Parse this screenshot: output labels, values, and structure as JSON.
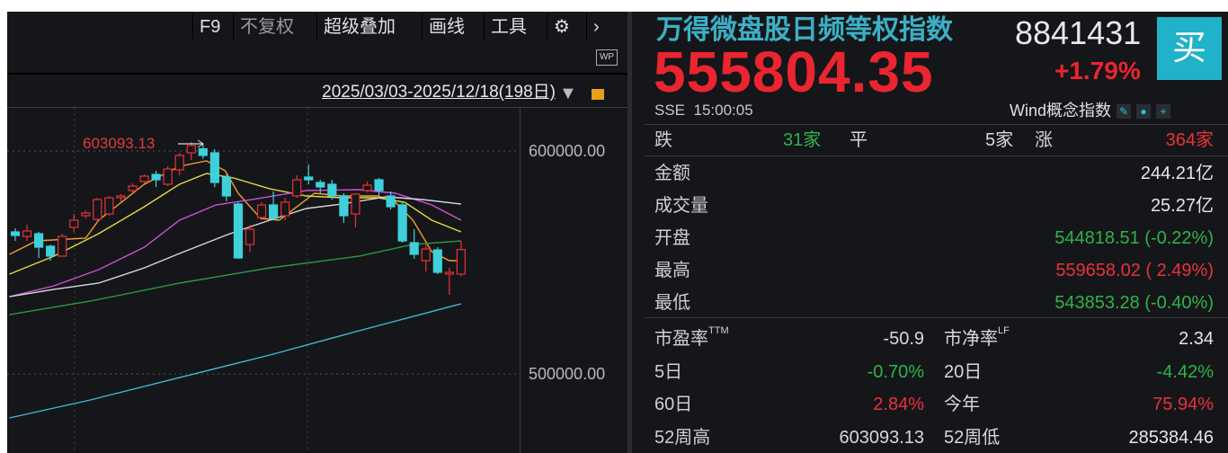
{
  "toolbar": {
    "items": [
      "F9",
      "不复权",
      "超级叠加",
      "画线",
      "工具"
    ],
    "settings_icon": "gear-icon",
    "next_icon": "chevron-right-icon",
    "wp_label": "WP"
  },
  "range": {
    "label": "2025/03/03-2025/12/18(198日)",
    "dropdown_icon": "triangle-down-icon",
    "lock_icon": "unlock-icon"
  },
  "chart_data": {
    "type": "candlestick",
    "y_ticks": [
      "600000.00",
      "500000.00"
    ],
    "y_tick_values": [
      600000,
      500000
    ],
    "ylim": [
      466200,
      662500
    ],
    "max_annotation": "603093.13",
    "colors": {
      "up": "#e8323a",
      "down": "#3fd0dc"
    },
    "candles": [
      [
        563730,
        562120,
        565340,
        559700
      ],
      [
        561710,
        564130,
        566950,
        559700
      ],
      [
        562920,
        556880,
        563730,
        552040
      ],
      [
        557280,
        552850,
        558090,
        550830
      ],
      [
        552850,
        561710,
        562920,
        552850
      ],
      [
        565750,
        568970,
        571790,
        563730
      ],
      [
        570980,
        572190,
        573400,
        569780
      ],
      [
        569370,
        578240,
        579040,
        568570
      ],
      [
        571790,
        579040,
        579850,
        570980
      ],
      [
        579040,
        579850,
        580660,
        577030
      ],
      [
        582270,
        584280,
        585490,
        581060
      ],
      [
        586300,
        588720,
        589520,
        585490
      ],
      [
        589520,
        587100,
        591130,
        583880
      ],
      [
        585090,
        591940,
        593150,
        584280
      ],
      [
        591540,
        597990,
        599190,
        589120
      ],
      [
        599190,
        602420,
        604030,
        595970
      ],
      [
        601000,
        598000,
        603093.13,
        596500
      ],
      [
        599190,
        585900,
        600810,
        583880
      ],
      [
        588310,
        579850,
        589520,
        577430
      ],
      [
        576220,
        552040,
        577030,
        551640
      ],
      [
        558090,
        564940,
        566950,
        554860
      ],
      [
        570180,
        575820,
        577030,
        568970
      ],
      [
        575820,
        569780,
        581870,
        568970
      ],
      [
        570980,
        577030,
        579040,
        568970
      ],
      [
        579850,
        587100,
        589120,
        579040
      ],
      [
        588310,
        587100,
        593960,
        585090
      ],
      [
        585900,
        583880,
        587100,
        581060
      ],
      [
        585090,
        579850,
        587100,
        578240
      ],
      [
        579850,
        570980,
        581060,
        567760
      ],
      [
        571790,
        580660,
        581060,
        565750
      ],
      [
        582270,
        584690,
        586300,
        581460
      ],
      [
        587100,
        582270,
        587910,
        579850
      ],
      [
        579850,
        575010,
        581870,
        573810
      ],
      [
        575820,
        559700,
        577030,
        558890
      ],
      [
        558890,
        553660,
        564940,
        551640
      ],
      [
        550830,
        556070,
        558890,
        546000
      ],
      [
        555670,
        545600,
        556880,
        544790
      ],
      [
        544790,
        545600,
        547610,
        535520
      ],
      [
        544818.51,
        555804.35,
        559658.02,
        543853.28
      ]
    ],
    "moving_averages": [
      {
        "color": "#f0a030",
        "points": [
          [
            -0.5,
            553660
          ],
          [
            1.8,
            559700
          ],
          [
            6,
            560910
          ],
          [
            7.1,
            568970
          ],
          [
            11,
            585090
          ],
          [
            14,
            593150
          ],
          [
            16.3,
            595570
          ],
          [
            17.9,
            591130
          ],
          [
            19,
            581060
          ],
          [
            20.9,
            569780
          ],
          [
            22.5,
            568970
          ],
          [
            24,
            575010
          ],
          [
            25.5,
            581060
          ],
          [
            27.8,
            579850
          ],
          [
            30.9,
            579850
          ],
          [
            32.4,
            577030
          ],
          [
            33.9,
            568970
          ],
          [
            35.5,
            554860
          ],
          [
            37,
            550830
          ],
          [
            38,
            550830
          ]
        ]
      },
      {
        "color": "#e8d840",
        "points": [
          [
            -0.5,
            544790
          ],
          [
            3.3,
            552850
          ],
          [
            7.1,
            562920
          ],
          [
            11,
            575010
          ],
          [
            14,
            585090
          ],
          [
            16.3,
            589920
          ],
          [
            18.6,
            587910
          ],
          [
            21.7,
            583070
          ],
          [
            24.8,
            579850
          ],
          [
            27.8,
            579040
          ],
          [
            30.9,
            579040
          ],
          [
            33.2,
            577030
          ],
          [
            35.5,
            568970
          ],
          [
            38,
            563730
          ]
        ]
      },
      {
        "color": "#d050d8",
        "points": [
          [
            -0.5,
            534710
          ],
          [
            3.3,
            539550
          ],
          [
            7.1,
            546800
          ],
          [
            11,
            556880
          ],
          [
            14,
            568970
          ],
          [
            17.1,
            575820
          ],
          [
            20.2,
            578240
          ],
          [
            24.8,
            582270
          ],
          [
            29.3,
            582670
          ],
          [
            32.4,
            581060
          ],
          [
            35.5,
            575820
          ],
          [
            38,
            568970
          ]
        ]
      },
      {
        "color": "#d8d8e0",
        "points": [
          [
            -0.5,
            534710
          ],
          [
            3.3,
            537940
          ],
          [
            7.1,
            540760
          ],
          [
            11,
            547610
          ],
          [
            14,
            554060
          ],
          [
            17.9,
            562120
          ],
          [
            19.4,
            564940
          ],
          [
            21.7,
            568970
          ],
          [
            24.8,
            574210
          ],
          [
            27.8,
            576220
          ],
          [
            31.6,
            579450
          ],
          [
            34.7,
            578240
          ],
          [
            38,
            576220
          ]
        ]
      },
      {
        "color": "#2a9a40",
        "points": [
          [
            -0.5,
            526650
          ],
          [
            6.4,
            532700
          ],
          [
            14,
            540760
          ],
          [
            21.7,
            547610
          ],
          [
            29.3,
            552850
          ],
          [
            33.9,
            558090
          ],
          [
            38,
            559700
          ]
        ]
      },
      {
        "color": "#40b8d8",
        "points": [
          [
            -0.5,
            480310
          ],
          [
            6.4,
            488370
          ],
          [
            14,
            498440
          ],
          [
            21.7,
            508520
          ],
          [
            29.3,
            519400
          ],
          [
            38,
            531490
          ]
        ]
      }
    ]
  },
  "quote": {
    "name": "万得微盘股日频等权指数",
    "code": "8841431",
    "price": "555804.35",
    "change_pct": "+1.79%",
    "buy_label": "买",
    "exchange": "SSE",
    "time": "15:00:05",
    "category": "Wind概念指数",
    "icons": [
      "pencil-icon",
      "bell-icon",
      "plus-icon"
    ],
    "breadth": {
      "down_label": "跌",
      "down_count": "31家",
      "flat_label": "平",
      "flat_count": "5家",
      "up_label": "涨",
      "up_count": "364家"
    },
    "rows": [
      {
        "label": "金额",
        "value": "244.21亿",
        "color": "white"
      },
      {
        "label": "成交量",
        "value": "25.27亿",
        "color": "white"
      },
      {
        "label": "开盘",
        "value": "544818.51 (-0.22%)",
        "color": "green"
      },
      {
        "label": "最高",
        "value": "559658.02 (  2.49%)",
        "color": "red"
      },
      {
        "label": "最低",
        "value": "543853.28 (-0.40%)",
        "color": "green"
      }
    ],
    "stats": [
      {
        "l1": "市盈率",
        "s1": "TTM",
        "v1": "-50.9",
        "c1": "white",
        "l2": "市净率",
        "s2": "LF",
        "v2": "2.34",
        "c2": "white"
      },
      {
        "l1": "5日",
        "s1": "",
        "v1": "-0.70%",
        "c1": "green",
        "l2": "20日",
        "s2": "",
        "v2": "-4.42%",
        "c2": "green"
      },
      {
        "l1": "60日",
        "s1": "",
        "v1": "2.84%",
        "c1": "red",
        "l2": "今年",
        "s2": "",
        "v2": "75.94%",
        "c2": "red"
      },
      {
        "l1": "52周高",
        "s1": "",
        "v1": "603093.13",
        "c1": "white",
        "l2": "52周低",
        "s2": "",
        "v2": "285384.46",
        "c2": "white"
      }
    ]
  }
}
